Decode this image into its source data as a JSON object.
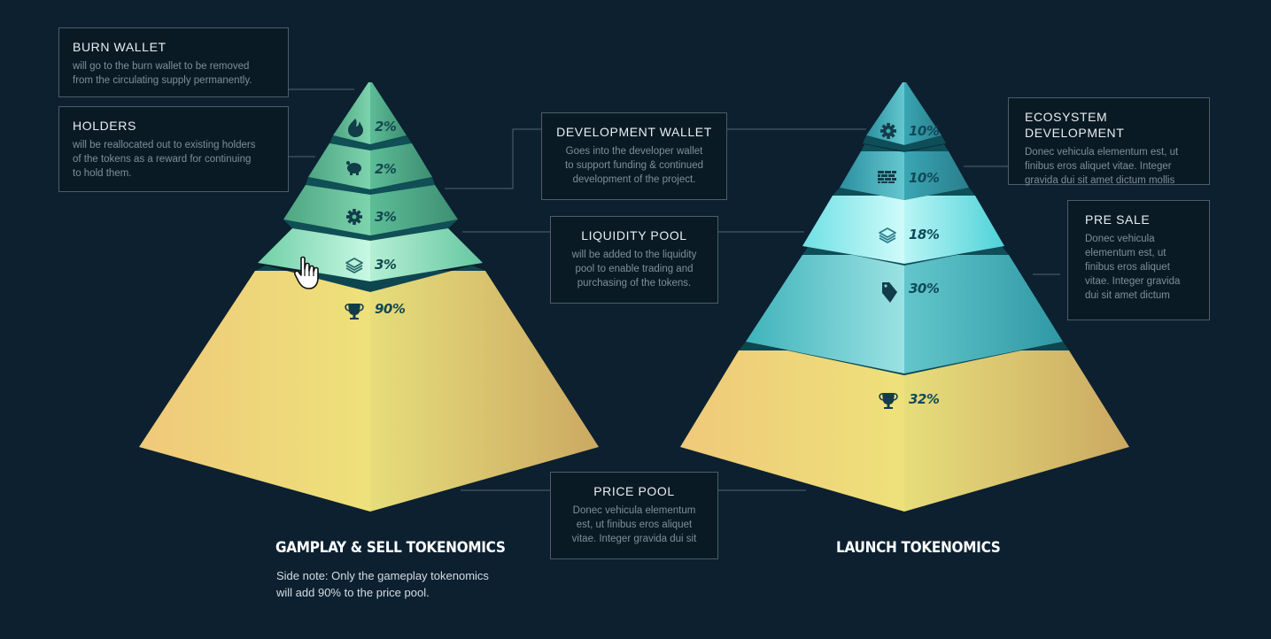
{
  "left_pyramid": {
    "title": "GAMPLAY & SELL TOKENOMICS",
    "note_line1": "Side note: Only the gameplay tokenomics",
    "note_line2": "will add 90% to the price pool.",
    "tiers": [
      {
        "icon": "flame-icon",
        "value": "2%",
        "label": "BURN WALLET"
      },
      {
        "icon": "piggy-bank-icon",
        "value": "2%",
        "label": "HOLDERS"
      },
      {
        "icon": "gear-icon",
        "value": "3%",
        "label": "DEVELOPMENT WALLET"
      },
      {
        "icon": "layers-icon",
        "value": "3%",
        "label": "LIQUIDITY POOL"
      },
      {
        "icon": "trophy-icon",
        "value": "90%",
        "label": "PRICE POOL"
      }
    ]
  },
  "right_pyramid": {
    "title": "LAUNCH TOKENOMICS",
    "tiers": [
      {
        "icon": "gear-icon",
        "value": "10%",
        "label": "DEVELOPMENT WALLET"
      },
      {
        "icon": "brick-wall-icon",
        "value": "10%",
        "label": "ECOSYSTEM DEVELOPMENT"
      },
      {
        "icon": "layers-icon",
        "value": "18%",
        "label": "LIQUIDITY POOL"
      },
      {
        "icon": "tag-icon",
        "value": "30%",
        "label": "PRE SALE"
      },
      {
        "icon": "trophy-icon",
        "value": "32%",
        "label": "PRICE POOL"
      }
    ]
  },
  "callouts": {
    "burn_wallet": {
      "title": "BURN WALLET",
      "line1": "will go to the burn wallet to be removed",
      "line2": "from the circulating supply permanently."
    },
    "holders": {
      "title": "HOLDERS",
      "line1": "will be reallocated out to existing holders",
      "line2": "of the tokens as a reward for continuing",
      "line3": "to hold them."
    },
    "development_wallet": {
      "title": "DEVELOPMENT WALLET",
      "line1": "Goes into the developer wallet",
      "line2": "to support funding & continued",
      "line3": "development of the project."
    },
    "liquidity_pool": {
      "title": "LIQUIDITY POOL",
      "line1": "will be added to the liquidity",
      "line2": "pool to enable trading and",
      "line3": "purchasing of the tokens."
    },
    "price_pool": {
      "title": "PRICE POOL",
      "line1": "Donec vehicula elementum",
      "line2": "est, ut finibus eros aliquet",
      "line3": "vitae. Integer gravida dui sit"
    },
    "ecosystem_development": {
      "title": "ECOSYSTEM DEVELOPMENT",
      "line1": "Donec vehicula elementum est, ut",
      "line2": "finibus eros aliquet vitae. Integer",
      "line3": "gravida dui sit amet dictum mollis"
    },
    "pre_sale": {
      "title": "PRE SALE",
      "line1": "Donec vehicula",
      "line2": "elementum est, ut",
      "line3": "finibus eros aliquet",
      "line4": "vitae. Integer gravida",
      "line5": "dui sit amet dictum"
    }
  },
  "colors": {
    "background": "#0c2030",
    "green_tier": "#5cc49a",
    "teal_tier": "#3aa8b5",
    "gold_tier": "#ecd57a",
    "label_dark": "#0f3b47"
  }
}
